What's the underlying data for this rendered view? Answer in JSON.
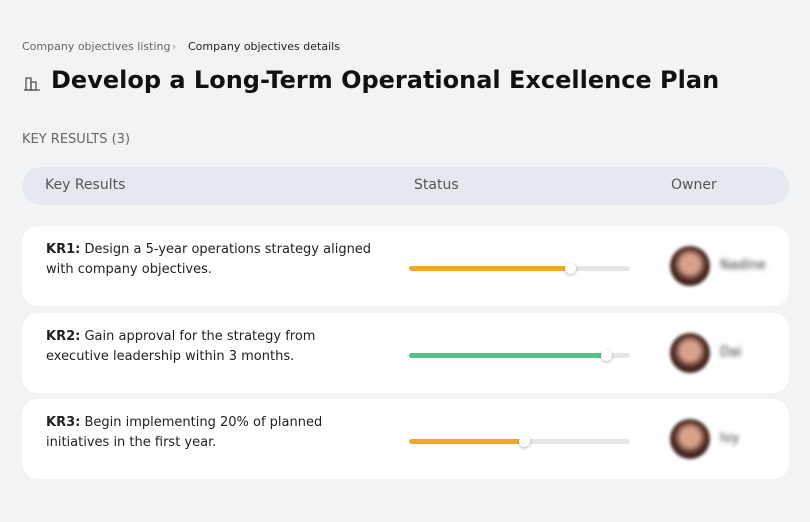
{
  "breadcrumb": {
    "items": [
      "Company objectives listing",
      "Company objectives details"
    ]
  },
  "header": {
    "title": "Develop a Long-Term Operational Excellence Plan"
  },
  "section": {
    "label": "KEY RESULTS (3)"
  },
  "table": {
    "columns": [
      "Key Results",
      "Status",
      "Owner"
    ],
    "rows": [
      {
        "id": "KR1:",
        "text": "Design a 5-year operations strategy aligned with company objectives.",
        "progress": 73,
        "color": "#f5a62f",
        "owner": "Nadine"
      },
      {
        "id": "KR2:",
        "text": "Gain approval for the strategy from executive leadership within 3 months.",
        "progress": 89,
        "color": "#52c48b",
        "owner": "Dai"
      },
      {
        "id": "KR3:",
        "text": "Begin implementing 20% of planned initiatives in the first year.",
        "progress": 52,
        "color": "#f5a62f",
        "owner": "Ivy"
      }
    ]
  }
}
